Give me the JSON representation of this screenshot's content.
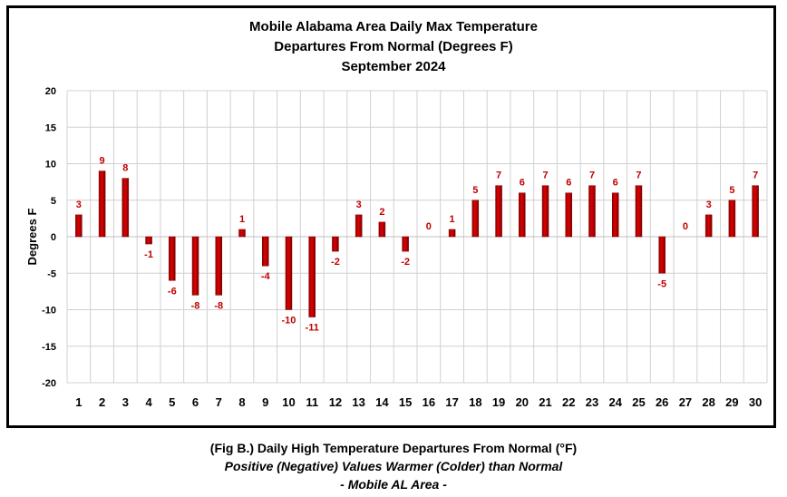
{
  "chart_data": {
    "type": "bar",
    "title_lines": [
      "Mobile Alabama Area Daily Max Temperature",
      "Departures From Normal (Degrees F)",
      "September 2024"
    ],
    "xlabel": "",
    "ylabel": "Degrees F",
    "ylim": [
      -20,
      20
    ],
    "ytick_step": 5,
    "grid": true,
    "legend": "none",
    "bar_color": "#c00000",
    "categories": [
      "1",
      "2",
      "3",
      "4",
      "5",
      "6",
      "7",
      "8",
      "9",
      "10",
      "11",
      "12",
      "13",
      "14",
      "15",
      "16",
      "17",
      "18",
      "19",
      "20",
      "21",
      "22",
      "23",
      "24",
      "25",
      "26",
      "27",
      "28",
      "29",
      "30"
    ],
    "values": [
      3,
      9,
      8,
      -1,
      -6,
      -8,
      -8,
      1,
      -4,
      -10,
      -11,
      -2,
      3,
      2,
      -2,
      0,
      1,
      5,
      7,
      6,
      7,
      6,
      7,
      6,
      7,
      -5,
      0,
      3,
      5,
      7
    ]
  },
  "caption": {
    "line1": "(Fig B.) Daily High Temperature Departures From Normal (°F)",
    "line2": "Positive (Negative) Values Warmer (Colder) than Normal",
    "line3": "- Mobile AL Area -"
  }
}
